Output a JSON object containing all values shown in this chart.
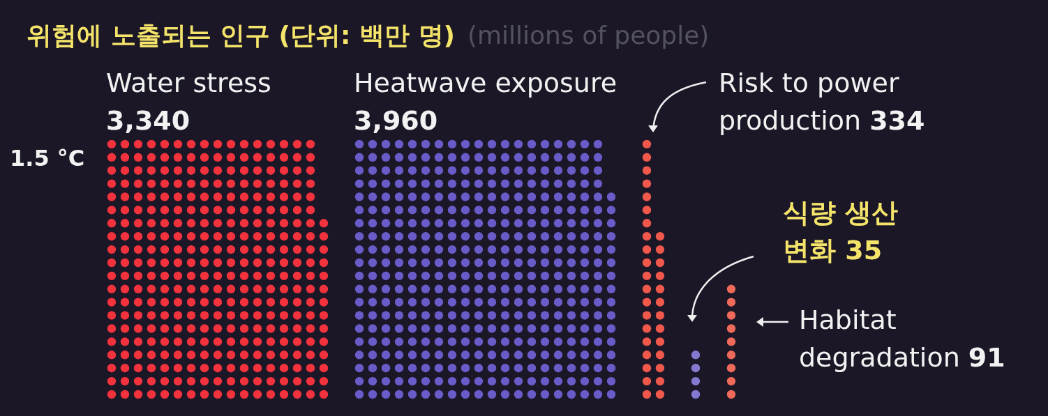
{
  "chart_data": {
    "type": "other",
    "title": "위험에 노출되는 인구 (단위: 백만 명)",
    "subtitle": "(millions of people)",
    "annotations": [
      "1.5 °C"
    ],
    "categories": [
      "Water stress",
      "Heatwave exposure",
      "Risk to power production",
      "식량 생산 변화",
      "Habitat degradation"
    ],
    "values": [
      3340,
      3960,
      334,
      35,
      91
    ],
    "value_labels": [
      "3,340",
      "3,960",
      "334",
      "35",
      "91"
    ],
    "colors": [
      "#f2323c",
      "#6a5cc8",
      "#f0584c",
      "#8478d0",
      "#f06a5a"
    ]
  }
}
